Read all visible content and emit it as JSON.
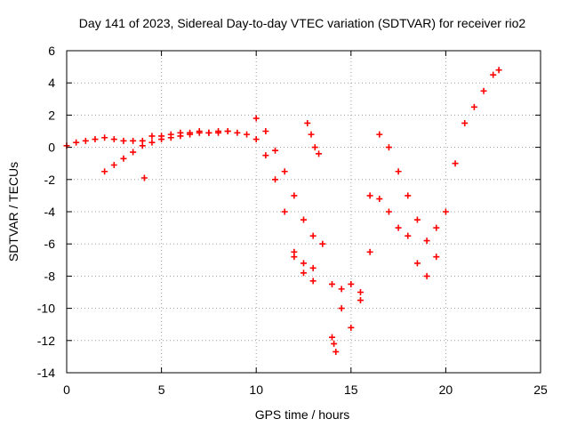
{
  "chart_data": {
    "type": "scatter",
    "title": "Day 141 of 2023, Sidereal Day-to-day VTEC variation (SDTVAR) for receiver rio2",
    "xlabel": "GPS time / hours",
    "ylabel": "SDTVAR / TECUs",
    "xlim": [
      0,
      25
    ],
    "ylim": [
      -14,
      6
    ],
    "xticks": [
      0,
      5,
      10,
      15,
      20,
      25
    ],
    "yticks": [
      -14,
      -12,
      -10,
      -8,
      -6,
      -4,
      -2,
      0,
      2,
      4,
      6
    ],
    "grid": true,
    "marker": "+",
    "series": [
      {
        "name": "main-track",
        "color": "#ff0000",
        "x": [
          0.0,
          0.5,
          1.0,
          1.5,
          2.0,
          2.5,
          3.0,
          3.5,
          4.0,
          4.5,
          5.0,
          5.5,
          6.0,
          6.5,
          7.0,
          7.5,
          8.0,
          8.5,
          9.0,
          9.5,
          10.0,
          10.5,
          11.0,
          11.5,
          12.0,
          12.5,
          13.0
        ],
        "y": [
          0.1,
          0.3,
          0.4,
          0.5,
          0.6,
          0.5,
          0.4,
          0.4,
          0.4,
          0.7,
          0.7,
          0.8,
          0.9,
          0.9,
          1.0,
          0.9,
          0.9,
          1.0,
          0.9,
          0.8,
          0.5,
          -0.5,
          -2.0,
          -4.0,
          -6.5,
          -7.8,
          -8.3
        ]
      },
      {
        "name": "rising-branch",
        "color": "#ff0000",
        "x": [
          2.0,
          2.5,
          3.0,
          3.5,
          4.0,
          4.5,
          5.0,
          5.5,
          6.0,
          6.5,
          7.0,
          7.5,
          8.0,
          8.5
        ],
        "y": [
          -1.5,
          -1.1,
          -0.7,
          -0.3,
          0.1,
          0.3,
          0.5,
          0.6,
          0.7,
          0.8,
          0.9,
          0.9,
          1.0,
          1.0
        ]
      },
      {
        "name": "second-track",
        "color": "#ff0000",
        "x": [
          10.0,
          10.5,
          11.0,
          11.5,
          12.0,
          12.5,
          13.0,
          13.5
        ],
        "y": [
          1.8,
          1.0,
          -0.2,
          -1.5,
          -3.0,
          -4.5,
          -5.5,
          -6.0
        ]
      },
      {
        "name": "evening-branch",
        "color": "#ff0000",
        "x": [
          12.0,
          12.5,
          13.0
        ],
        "y": [
          -6.8,
          -7.2,
          -7.5
        ]
      },
      {
        "name": "short-segment",
        "color": "#ff0000",
        "x": [
          12.7,
          12.9,
          13.1,
          13.3
        ],
        "y": [
          1.5,
          0.8,
          0.0,
          -0.4
        ]
      },
      {
        "name": "isolated-point",
        "color": "#ff0000",
        "x": [
          4.1
        ],
        "y": [
          -1.9
        ]
      },
      {
        "name": "afternoon-track",
        "color": "#ff0000",
        "x": [
          14.0,
          14.5,
          15.0,
          15.5,
          16.0,
          16.5,
          17.0,
          17.5,
          18.0,
          18.5,
          19.0,
          19.5,
          20.0,
          20.5,
          21.0,
          21.5,
          22.0,
          22.5,
          22.8
        ],
        "y": [
          -8.5,
          -10.0,
          -11.2,
          -9.0,
          -3.0,
          0.8,
          0.0,
          -1.5,
          -3.0,
          -4.5,
          -5.8,
          -5.0,
          -4.0,
          -1.0,
          1.5,
          2.5,
          3.5,
          4.5,
          4.8
        ]
      },
      {
        "name": "lower-afternoon-track",
        "color": "#ff0000",
        "x": [
          14.5,
          15.0,
          15.5,
          16.0,
          16.5,
          17.0,
          17.5,
          18.0,
          18.5,
          19.0,
          19.5
        ],
        "y": [
          -8.8,
          -8.5,
          -9.5,
          -6.5,
          -3.2,
          -4.0,
          -5.0,
          -5.5,
          -7.2,
          -8.0,
          -6.8
        ]
      },
      {
        "name": "outlier-cluster",
        "color": "#ff0000",
        "x": [
          14.0,
          14.1,
          14.2
        ],
        "y": [
          -11.8,
          -12.2,
          -12.7
        ]
      }
    ]
  }
}
